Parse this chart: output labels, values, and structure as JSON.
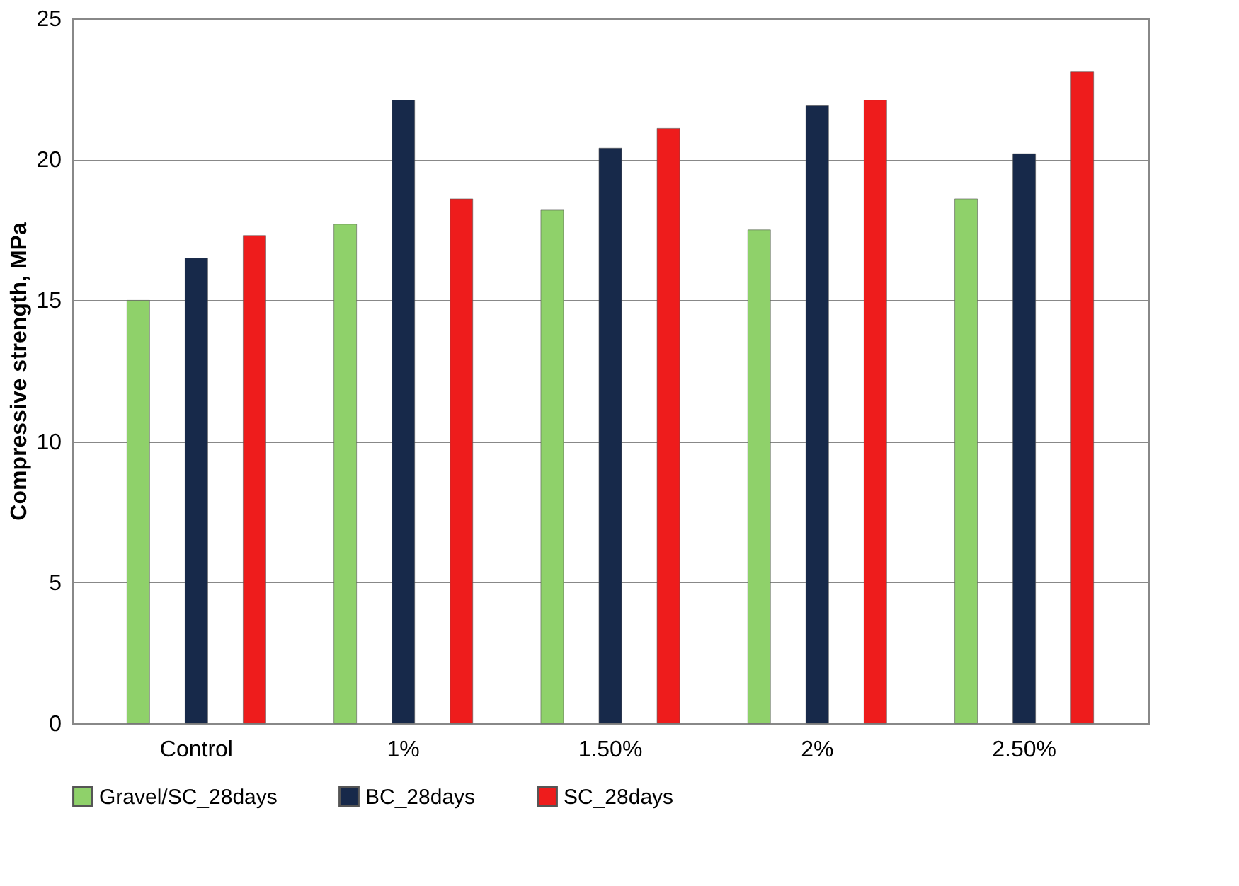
{
  "chart_data": {
    "type": "bar",
    "ylabel": "Compressive strength, MPa",
    "categories": [
      "Control",
      "1%",
      "1.50%",
      "2%",
      "2.50%"
    ],
    "series": [
      {
        "name": "Gravel/SC_28days",
        "color": "#8fd16a",
        "values": [
          15.0,
          17.7,
          18.2,
          17.5,
          18.6
        ]
      },
      {
        "name": "BC_28days",
        "color": "#17294a",
        "values": [
          16.5,
          22.1,
          20.4,
          21.9,
          20.2
        ]
      },
      {
        "name": "SC_28days",
        "color": "#ee1c1c",
        "values": [
          17.3,
          18.6,
          21.1,
          22.1,
          23.1
        ]
      }
    ],
    "ylim": [
      0,
      25
    ],
    "yticks": [
      0,
      5,
      10,
      15,
      20,
      25
    ],
    "grid": "y",
    "legend": "bottom"
  }
}
